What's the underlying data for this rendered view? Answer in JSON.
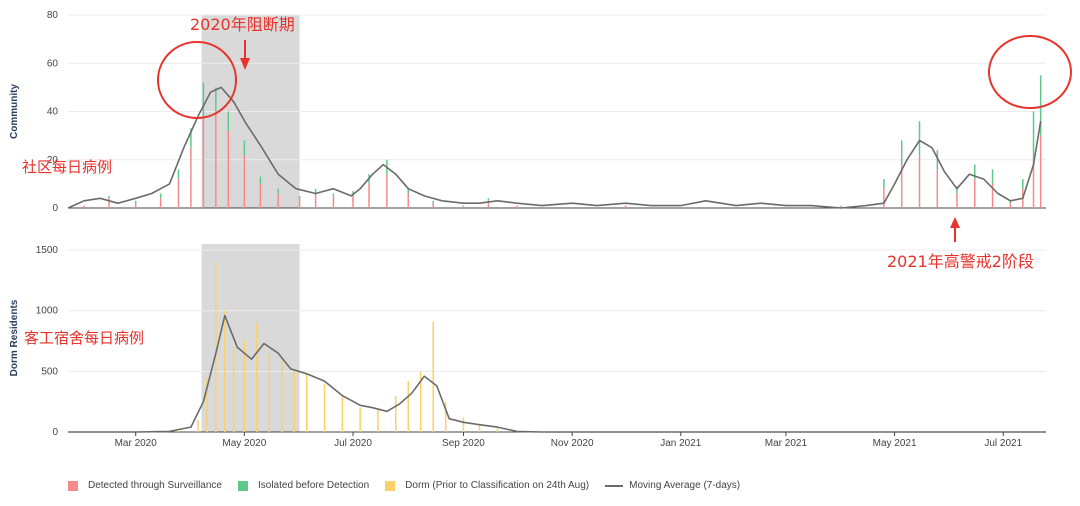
{
  "chart_data": {
    "type": "bar",
    "colors": {
      "surveillance": "#f38b8b",
      "isolated": "#5cc98a",
      "dorm": "#fbd26a",
      "moving_average": "#6b6b6b",
      "highlight": "#d9d9d9",
      "annotation": "#e8322c"
    },
    "x_range": [
      "2020-01-23",
      "2021-07-25"
    ],
    "x_ticks": [
      "Mar 2020",
      "May 2020",
      "Jul 2020",
      "Sep 2020",
      "Nov 2020",
      "Jan 2021",
      "Mar 2021",
      "May 2021",
      "Jul 2021"
    ],
    "x_tick_dates": [
      "2020-03-01",
      "2020-05-01",
      "2020-07-01",
      "2020-09-01",
      "2020-11-01",
      "2021-01-01",
      "2021-03-01",
      "2021-05-01",
      "2021-07-01"
    ],
    "highlight_period": [
      "2020-04-07",
      "2020-06-01"
    ],
    "panels": [
      {
        "ylabel": "Community",
        "ylim": [
          0,
          80
        ],
        "yticks": [
          0,
          20,
          40,
          60,
          80
        ],
        "stacked": true,
        "series": [
          {
            "name": "Detected through Surveillance",
            "color_key": "surveillance",
            "x": [
              "2020-02-01",
              "2020-02-15",
              "2020-03-01",
              "2020-03-15",
              "2020-03-25",
              "2020-04-01",
              "2020-04-08",
              "2020-04-15",
              "2020-04-22",
              "2020-05-01",
              "2020-05-10",
              "2020-05-20",
              "2020-06-01",
              "2020-06-10",
              "2020-06-20",
              "2020-07-01",
              "2020-07-10",
              "2020-07-20",
              "2020-08-01",
              "2020-08-15",
              "2020-09-01",
              "2020-09-15",
              "2020-10-01",
              "2020-11-01",
              "2020-12-01",
              "2021-01-01",
              "2021-02-01",
              "2021-03-01",
              "2021-04-01",
              "2021-04-25",
              "2021-05-05",
              "2021-05-15",
              "2021-05-25",
              "2021-06-05",
              "2021-06-15",
              "2021-06-25",
              "2021-07-05",
              "2021-07-12",
              "2021-07-18",
              "2021-07-22"
            ],
            "values": [
              1,
              4,
              2,
              4,
              12,
              25,
              38,
              40,
              32,
              22,
              10,
              6,
              4,
              6,
              5,
              5,
              10,
              14,
              6,
              2,
              1,
              3,
              1,
              0,
              1,
              0,
              0,
              0,
              1,
              8,
              18,
              22,
              16,
              6,
              12,
              10,
              2,
              8,
              20,
              30
            ]
          },
          {
            "name": "Isolated before Detection",
            "color_key": "isolated",
            "x": [
              "2020-02-01",
              "2020-02-15",
              "2020-03-01",
              "2020-03-15",
              "2020-03-25",
              "2020-04-01",
              "2020-04-08",
              "2020-04-15",
              "2020-04-22",
              "2020-05-01",
              "2020-05-10",
              "2020-05-20",
              "2020-06-01",
              "2020-06-10",
              "2020-06-20",
              "2020-07-01",
              "2020-07-10",
              "2020-07-20",
              "2020-08-01",
              "2020-08-15",
              "2020-09-01",
              "2020-09-15",
              "2020-10-01",
              "2020-11-01",
              "2020-12-01",
              "2021-01-01",
              "2021-02-01",
              "2021-03-01",
              "2021-04-01",
              "2021-04-25",
              "2021-05-05",
              "2021-05-15",
              "2021-05-25",
              "2021-06-05",
              "2021-06-15",
              "2021-06-25",
              "2021-07-05",
              "2021-07-12",
              "2021-07-18",
              "2021-07-22"
            ],
            "values": [
              0,
              1,
              1,
              2,
              4,
              8,
              14,
              10,
              8,
              6,
              3,
              2,
              1,
              2,
              1,
              2,
              4,
              6,
              2,
              1,
              0,
              1,
              0,
              0,
              0,
              0,
              0,
              0,
              0,
              4,
              10,
              14,
              8,
              3,
              6,
              6,
              1,
              4,
              20,
              25
            ]
          }
        ],
        "moving_average": {
          "name": "Moving Average (7-days)",
          "x": [
            "2020-01-23",
            "2020-02-01",
            "2020-02-10",
            "2020-02-20",
            "2020-03-01",
            "2020-03-10",
            "2020-03-20",
            "2020-03-28",
            "2020-04-05",
            "2020-04-12",
            "2020-04-18",
            "2020-04-25",
            "2020-05-02",
            "2020-05-10",
            "2020-05-20",
            "2020-05-30",
            "2020-06-10",
            "2020-06-20",
            "2020-06-30",
            "2020-07-05",
            "2020-07-12",
            "2020-07-18",
            "2020-07-25",
            "2020-08-01",
            "2020-08-10",
            "2020-08-20",
            "2020-09-01",
            "2020-09-10",
            "2020-09-20",
            "2020-10-01",
            "2020-10-15",
            "2020-11-01",
            "2020-11-15",
            "2020-12-01",
            "2020-12-15",
            "2021-01-01",
            "2021-01-15",
            "2021-02-01",
            "2021-02-15",
            "2021-03-01",
            "2021-03-15",
            "2021-04-01",
            "2021-04-15",
            "2021-04-25",
            "2021-05-01",
            "2021-05-08",
            "2021-05-15",
            "2021-05-22",
            "2021-05-29",
            "2021-06-05",
            "2021-06-12",
            "2021-06-20",
            "2021-06-28",
            "2021-07-05",
            "2021-07-12",
            "2021-07-18",
            "2021-07-22"
          ],
          "values": [
            0,
            3,
            4,
            2,
            4,
            6,
            10,
            25,
            38,
            48,
            50,
            44,
            35,
            26,
            14,
            8,
            6,
            8,
            5,
            8,
            14,
            18,
            14,
            8,
            5,
            3,
            2,
            2,
            3,
            2,
            1,
            2,
            1,
            2,
            1,
            1,
            3,
            1,
            2,
            1,
            1,
            0,
            1,
            2,
            10,
            20,
            28,
            25,
            15,
            8,
            14,
            12,
            6,
            3,
            4,
            18,
            36
          ]
        }
      },
      {
        "ylabel": "Dorm Residents",
        "ylim": [
          0,
          1550
        ],
        "yticks": [
          0,
          500,
          1000,
          1500
        ],
        "stacked": false,
        "series": [
          {
            "name": "Dorm (Prior to Classification on 24th Aug)",
            "color_key": "dorm",
            "x": [
              "2020-03-25",
              "2020-04-05",
              "2020-04-10",
              "2020-04-15",
              "2020-04-20",
              "2020-04-25",
              "2020-05-01",
              "2020-05-08",
              "2020-05-15",
              "2020-05-22",
              "2020-05-29",
              "2020-06-05",
              "2020-06-15",
              "2020-06-25",
              "2020-07-05",
              "2020-07-15",
              "2020-07-25",
              "2020-08-01",
              "2020-08-08",
              "2020-08-15",
              "2020-08-22",
              "2020-09-01",
              "2020-09-10",
              "2020-09-20",
              "2020-10-01"
            ],
            "values": [
              10,
              100,
              450,
              1400,
              1000,
              700,
              750,
              900,
              650,
              600,
              520,
              480,
              400,
              300,
              200,
              180,
              300,
              420,
              500,
              910,
              250,
              120,
              60,
              30,
              5
            ]
          }
        ],
        "moving_average": {
          "name": "Moving Average (7-days)",
          "x": [
            "2020-01-23",
            "2020-03-01",
            "2020-03-20",
            "2020-04-01",
            "2020-04-08",
            "2020-04-15",
            "2020-04-20",
            "2020-04-27",
            "2020-05-05",
            "2020-05-12",
            "2020-05-20",
            "2020-05-27",
            "2020-06-05",
            "2020-06-15",
            "2020-06-25",
            "2020-07-05",
            "2020-07-12",
            "2020-07-20",
            "2020-07-27",
            "2020-08-03",
            "2020-08-10",
            "2020-08-17",
            "2020-08-24",
            "2020-09-01",
            "2020-09-10",
            "2020-09-20",
            "2020-10-01",
            "2020-10-15",
            "2021-07-25"
          ],
          "values": [
            0,
            0,
            5,
            40,
            250,
            650,
            960,
            700,
            600,
            730,
            650,
            520,
            480,
            420,
            300,
            220,
            200,
            170,
            230,
            320,
            460,
            380,
            110,
            80,
            60,
            40,
            5,
            0,
            0
          ]
        }
      }
    ],
    "annotations": [
      {
        "text": "2020年阻断期",
        "target_date": "2020-05-01"
      },
      {
        "text": "社区每日病例"
      },
      {
        "text": "客工宿舍每日病例"
      },
      {
        "text": "2021年高警戒2阶段",
        "target_date": "2021-05-25"
      }
    ]
  },
  "legend": [
    {
      "label": "Detected through Surveillance",
      "color": "#f38b8b",
      "kind": "box"
    },
    {
      "label": "Isolated before Detection",
      "color": "#5cc98a",
      "kind": "box"
    },
    {
      "label": "Dorm (Prior to Classification on 24th Aug)",
      "color": "#fbd26a",
      "kind": "box"
    },
    {
      "label": "Moving Average (7-days)",
      "color": "#6b6b6b",
      "kind": "line"
    }
  ]
}
